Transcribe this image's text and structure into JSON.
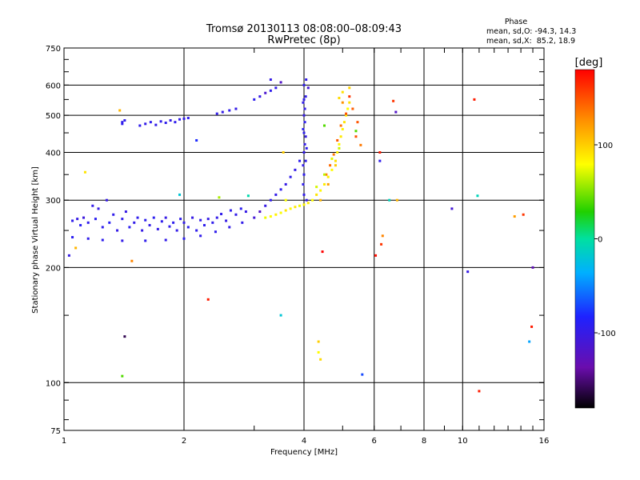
{
  "chart_data": {
    "type": "scatter",
    "title": "Tromsø 20130113 08:08:00–08:09:43",
    "subtitle": "RwPretec (8p)",
    "xlabel": "Frequency [MHz]",
    "ylabel": "Stationary phase Virtual Height [km]",
    "x_scale": "log",
    "y_scale": "log",
    "xlim": [
      1,
      16
    ],
    "ylim": [
      75,
      750
    ],
    "x_ticks": [
      1,
      2,
      4,
      6,
      8,
      10,
      16
    ],
    "x_tick_labels": [
      "1",
      "2",
      "4",
      "6",
      "8",
      "10",
      "16"
    ],
    "y_ticks": [
      75,
      100,
      200,
      300,
      400,
      500,
      600,
      750
    ],
    "y_tick_labels": [
      "75",
      "100",
      "200",
      "300",
      "400",
      "500",
      "600",
      "750"
    ],
    "grid": true,
    "stats": {
      "heading": "Phase",
      "o_line": "mean, sd,O: -94.3, 14.3",
      "x_line": "mean, sd,X:  85.2, 18.9"
    },
    "colorbar": {
      "label": "[deg]",
      "ticks": [
        100,
        0,
        -100
      ],
      "tick_labels": [
        "100",
        "0",
        "-100"
      ],
      "range": [
        -180,
        180
      ]
    },
    "series": [
      {
        "points": [
          [
            1.05,
            265,
            -95
          ],
          [
            1.08,
            268,
            -100
          ],
          [
            1.1,
            258,
            -90
          ],
          [
            1.12,
            270,
            -105
          ],
          [
            1.15,
            262,
            -95
          ],
          [
            1.18,
            290,
            -98
          ],
          [
            1.2,
            268,
            -92
          ],
          [
            1.22,
            285,
            -100
          ],
          [
            1.25,
            255,
            -95
          ],
          [
            1.28,
            300,
            -100
          ],
          [
            1.3,
            262,
            -90
          ],
          [
            1.33,
            275,
            -96
          ],
          [
            1.36,
            250,
            -99
          ],
          [
            1.4,
            268,
            -95
          ],
          [
            1.43,
            280,
            -100
          ],
          [
            1.46,
            255,
            -92
          ],
          [
            1.5,
            262,
            -97
          ],
          [
            1.53,
            270,
            -95
          ],
          [
            1.57,
            250,
            -100
          ],
          [
            1.6,
            266,
            -94
          ],
          [
            1.64,
            258,
            -98
          ],
          [
            1.68,
            270,
            -93
          ],
          [
            1.72,
            252,
            -99
          ],
          [
            1.76,
            264,
            -95
          ],
          [
            1.8,
            270,
            -100
          ],
          [
            1.84,
            256,
            -96
          ],
          [
            1.88,
            262,
            -94
          ],
          [
            1.92,
            250,
            -98
          ],
          [
            1.96,
            268,
            -95
          ],
          [
            2.0,
            262,
            -97
          ],
          [
            2.05,
            255,
            -93
          ],
          [
            2.1,
            270,
            -100
          ],
          [
            2.15,
            250,
            -95
          ],
          [
            2.2,
            266,
            -97
          ],
          [
            2.25,
            258,
            -94
          ],
          [
            2.3,
            268,
            -99
          ],
          [
            2.36,
            262,
            -95
          ],
          [
            2.42,
            270,
            -98
          ],
          [
            2.48,
            276,
            -96
          ],
          [
            2.55,
            265,
            -100
          ],
          [
            2.62,
            282,
            -95
          ],
          [
            2.7,
            275,
            -97
          ],
          [
            2.78,
            285,
            -93
          ],
          [
            2.86,
            280,
            -99
          ],
          [
            1.05,
            240,
            -92
          ],
          [
            1.15,
            238,
            -96
          ],
          [
            1.25,
            236,
            -94
          ],
          [
            1.4,
            235,
            -98
          ],
          [
            1.6,
            235,
            -95
          ],
          [
            1.8,
            236,
            -97
          ],
          [
            2.0,
            238,
            -93
          ],
          [
            2.2,
            242,
            -96
          ],
          [
            2.4,
            248,
            -95
          ],
          [
            2.6,
            255,
            -98
          ],
          [
            2.8,
            262,
            -97
          ],
          [
            3.0,
            270,
            -110
          ],
          [
            3.1,
            280,
            -120
          ],
          [
            3.2,
            290,
            -100
          ],
          [
            3.3,
            300,
            -95
          ],
          [
            3.4,
            310,
            -98
          ],
          [
            3.5,
            320,
            -95
          ],
          [
            3.6,
            330,
            -100
          ],
          [
            3.7,
            345,
            -96
          ],
          [
            3.8,
            360,
            -99
          ],
          [
            3.9,
            380,
            -95
          ],
          [
            4.0,
            310,
            -97
          ],
          [
            4.0,
            350,
            -95
          ],
          [
            4.0,
            400,
            -98
          ],
          [
            4.0,
            450,
            -94
          ],
          [
            4.0,
            500,
            -100
          ],
          [
            4.0,
            550,
            -96
          ],
          [
            4.0,
            600,
            -95
          ],
          [
            4.02,
            420,
            -99
          ],
          [
            4.02,
            480,
            -94
          ],
          [
            4.02,
            520,
            -98
          ],
          [
            4.04,
            380,
            -95
          ],
          [
            4.04,
            440,
            -100
          ],
          [
            4.04,
            560,
            -96
          ],
          [
            4.05,
            620,
            -97
          ],
          [
            3.98,
            330,
            -95
          ],
          [
            3.98,
            370,
            -98
          ],
          [
            3.98,
            460,
            -93
          ],
          [
            3.98,
            540,
            -96
          ],
          [
            4.06,
            300,
            -100
          ],
          [
            4.06,
            410,
            -95
          ],
          [
            1.55,
            470,
            -95
          ],
          [
            1.6,
            475,
            -98
          ],
          [
            1.65,
            480,
            -94
          ],
          [
            1.7,
            472,
            -97
          ],
          [
            1.75,
            482,
            -96
          ],
          [
            1.8,
            478,
            -95
          ],
          [
            1.85,
            485,
            -99
          ],
          [
            1.9,
            480,
            -94
          ],
          [
            1.95,
            488,
            -96
          ],
          [
            2.0,
            490,
            -97
          ],
          [
            2.05,
            492,
            -95
          ],
          [
            2.42,
            505,
            -96
          ],
          [
            2.5,
            510,
            -98
          ],
          [
            2.6,
            515,
            -95
          ],
          [
            2.7,
            520,
            -99
          ],
          [
            3.0,
            550,
            -94
          ],
          [
            3.1,
            560,
            -100
          ],
          [
            3.2,
            572,
            -115
          ],
          [
            3.3,
            580,
            -95
          ],
          [
            3.4,
            590,
            -97
          ],
          [
            3.5,
            610,
            -120
          ],
          [
            1.4,
            480,
            -96
          ],
          [
            1.42,
            485,
            -95
          ]
        ]
      },
      {
        "points": [
          [
            3.2,
            270,
            75
          ],
          [
            3.3,
            272,
            80
          ],
          [
            3.4,
            275,
            85
          ],
          [
            3.5,
            278,
            78
          ],
          [
            3.6,
            282,
            90
          ],
          [
            3.7,
            285,
            82
          ],
          [
            3.8,
            288,
            88
          ],
          [
            3.9,
            290,
            76
          ],
          [
            4.0,
            292,
            84
          ],
          [
            4.1,
            295,
            86
          ],
          [
            4.2,
            300,
            80
          ],
          [
            4.3,
            310,
            90
          ],
          [
            4.4,
            318,
            82
          ],
          [
            4.5,
            330,
            88
          ],
          [
            4.6,
            345,
            85
          ],
          [
            4.7,
            360,
            80
          ],
          [
            4.8,
            380,
            92
          ],
          [
            4.85,
            400,
            86
          ],
          [
            4.9,
            420,
            82
          ],
          [
            4.95,
            440,
            88
          ],
          [
            5.0,
            460,
            84
          ],
          [
            5.05,
            480,
            90
          ],
          [
            5.1,
            500,
            86
          ],
          [
            5.15,
            520,
            80
          ],
          [
            5.2,
            540,
            92
          ],
          [
            4.55,
            350,
            130
          ],
          [
            4.65,
            370,
            140
          ],
          [
            4.75,
            395,
            135
          ],
          [
            4.85,
            430,
            145
          ],
          [
            4.95,
            470,
            138
          ],
          [
            5.1,
            505,
            150
          ],
          [
            5.3,
            520,
            145
          ],
          [
            5.4,
            455,
            40
          ],
          [
            5.45,
            480,
            148
          ],
          [
            4.4,
            300,
            110
          ],
          [
            4.6,
            330,
            120
          ],
          [
            4.8,
            370,
            100
          ],
          [
            4.9,
            555,
            95
          ],
          [
            5.0,
            575,
            92
          ],
          [
            5.2,
            590,
            98
          ],
          [
            4.3,
            325,
            70
          ],
          [
            4.5,
            350,
            65
          ],
          [
            4.7,
            385,
            72
          ],
          [
            4.9,
            410,
            68
          ],
          [
            3.6,
            300,
            78
          ]
        ]
      },
      {
        "points": [
          [
            1.03,
            215,
            -100
          ],
          [
            1.07,
            225,
            110
          ],
          [
            1.13,
            355,
            90
          ],
          [
            1.38,
            515,
            110
          ],
          [
            1.4,
            475,
            -95
          ],
          [
            1.42,
            132,
            -160
          ],
          [
            1.4,
            104,
            40
          ],
          [
            1.48,
            208,
            130
          ],
          [
            1.95,
            310,
            -20
          ],
          [
            2.15,
            430,
            -80
          ],
          [
            2.3,
            165,
            170
          ],
          [
            2.45,
            305,
            60
          ],
          [
            2.9,
            308,
            -5
          ],
          [
            3.3,
            620,
            -100
          ],
          [
            3.5,
            150,
            -20
          ],
          [
            3.55,
            400,
            100
          ],
          [
            4.1,
            590,
            -110
          ],
          [
            4.35,
            128,
            100
          ],
          [
            4.35,
            120,
            80
          ],
          [
            4.4,
            115,
            95
          ],
          [
            4.45,
            220,
            180
          ],
          [
            4.5,
            470,
            40
          ],
          [
            5.0,
            540,
            125
          ],
          [
            5.2,
            560,
            160
          ],
          [
            5.4,
            440,
            150
          ],
          [
            5.6,
            105,
            -70
          ],
          [
            5.55,
            418,
            135
          ],
          [
            6.2,
            400,
            170
          ],
          [
            6.2,
            380,
            -95
          ],
          [
            6.25,
            230,
            160
          ],
          [
            6.3,
            242,
            130
          ],
          [
            6.55,
            300,
            -10
          ],
          [
            6.7,
            545,
            160
          ],
          [
            6.8,
            510,
            -120
          ],
          [
            6.85,
            300,
            110
          ],
          [
            9.4,
            285,
            -110
          ],
          [
            10.3,
            195,
            -100
          ],
          [
            10.7,
            550,
            170
          ],
          [
            10.9,
            308,
            -10
          ],
          [
            11.0,
            95,
            170
          ],
          [
            13.5,
            272,
            120
          ],
          [
            14.2,
            275,
            160
          ],
          [
            14.7,
            128,
            -40
          ],
          [
            14.9,
            140,
            170
          ],
          [
            15.0,
            200,
            -130
          ],
          [
            6.05,
            215,
            175
          ]
        ]
      }
    ]
  }
}
